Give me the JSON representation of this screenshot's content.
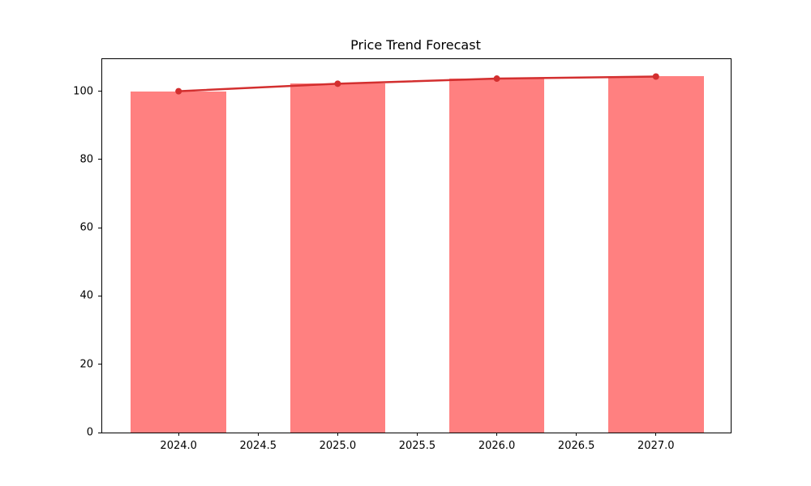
{
  "chart_data": {
    "type": "bar",
    "overlay": "line",
    "title": "Price Trend Forecast",
    "xlabel": "",
    "ylabel": "",
    "categories": [
      "2024",
      "2025",
      "2026",
      "2027"
    ],
    "x": [
      2024,
      2025,
      2026,
      2027
    ],
    "series": [
      {
        "name": "price-bars",
        "type": "bar",
        "values": [
          100,
          102.2,
          103.7,
          104.3
        ],
        "color": "#ff8080"
      },
      {
        "name": "trend-line",
        "type": "line",
        "values": [
          100,
          102.2,
          103.7,
          104.3
        ],
        "color": "#d32f2f",
        "marker": "circle"
      }
    ],
    "bar_width": 0.6,
    "xlim": [
      2023.52,
      2027.47
    ],
    "ylim": [
      0,
      109.4
    ],
    "x_ticks": [
      2024.0,
      2024.5,
      2025.0,
      2025.5,
      2026.0,
      2026.5,
      2027.0
    ],
    "x_tick_labels": [
      "2024.0",
      "2024.5",
      "2025.0",
      "2025.5",
      "2026.0",
      "2026.5",
      "2027.0"
    ],
    "y_ticks": [
      0,
      20,
      40,
      60,
      80,
      100
    ],
    "y_tick_labels": [
      "0",
      "20",
      "40",
      "60",
      "80",
      "100"
    ],
    "grid": false,
    "legend": null,
    "colors": {
      "bar_fill": "#ff8080",
      "line": "#d32f2f",
      "axis": "#000000",
      "background": "#ffffff"
    }
  }
}
